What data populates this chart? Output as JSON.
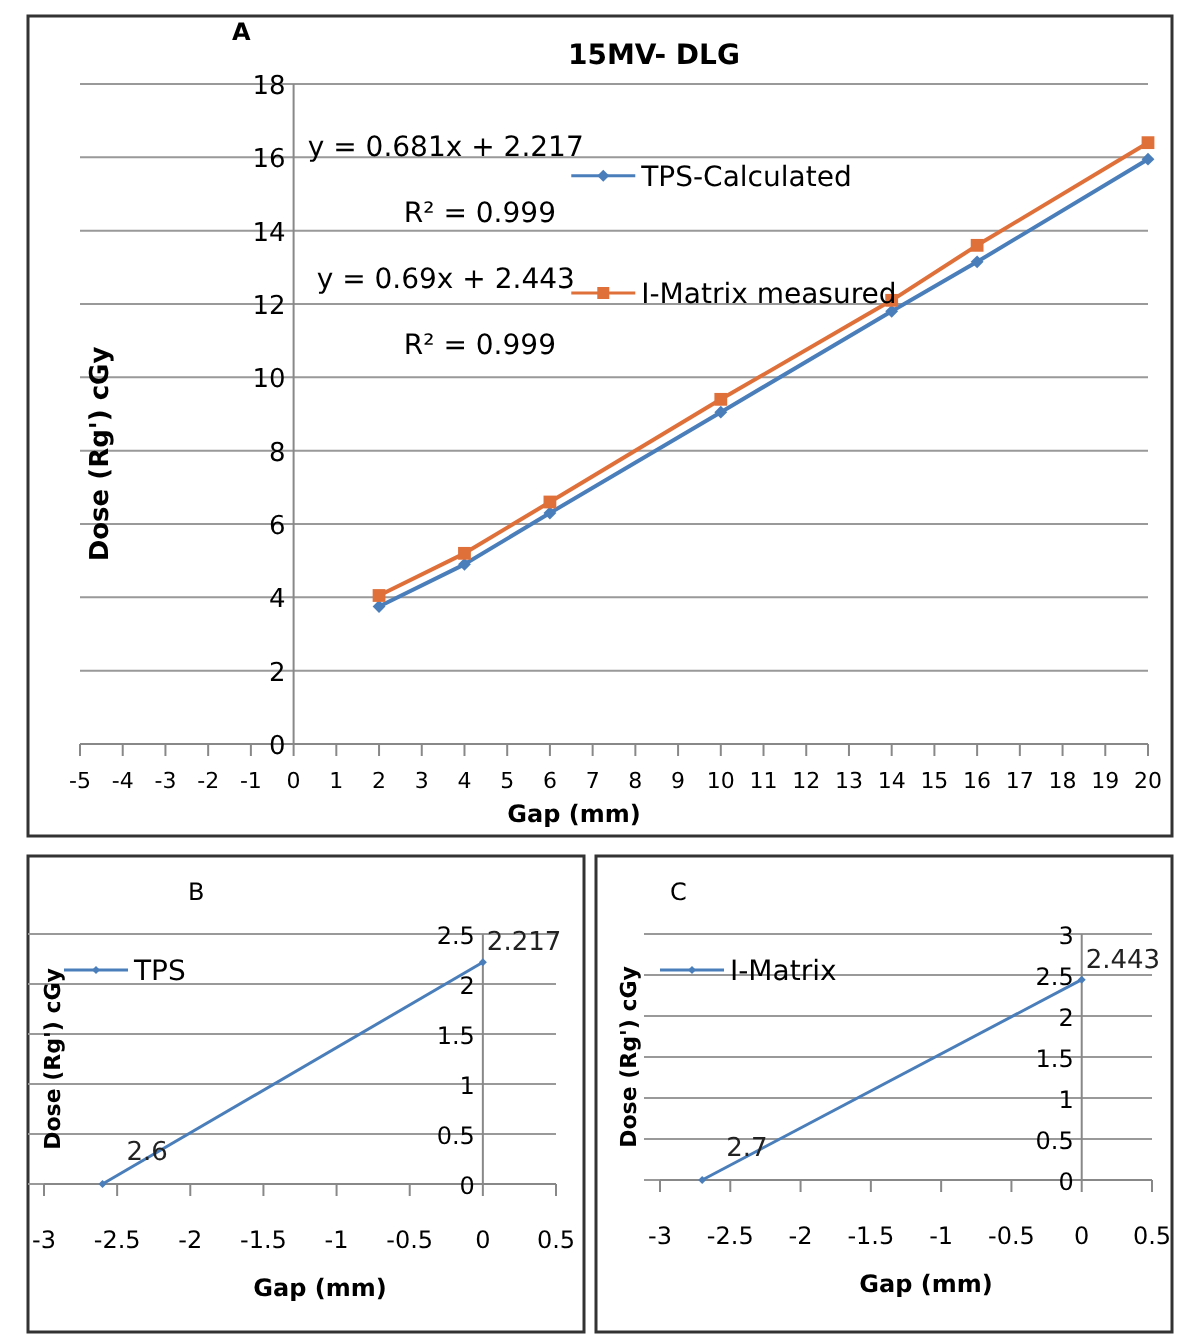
{
  "chart_data": [
    {
      "type": "line",
      "title": "15MV- DLG",
      "xlabel": "Gap (mm)",
      "ylabel": "Dose (Rg') cGy",
      "x": [
        2,
        4,
        6,
        10,
        14,
        16,
        20
      ],
      "series": [
        {
          "name": "TPS-Calculated",
          "color": "#4a7ebb",
          "marker": "diamond",
          "values": [
            3.75,
            4.9,
            6.3,
            9.05,
            11.8,
            13.15,
            15.95
          ]
        },
        {
          "name": "I-Matrix measured",
          "color": "#e0703a",
          "marker": "square",
          "values": [
            4.05,
            5.2,
            6.6,
            9.4,
            12.1,
            13.6,
            16.4
          ]
        }
      ],
      "xlim": [
        -5,
        20
      ],
      "xticks": [
        -5,
        -4,
        -3,
        -2,
        -1,
        0,
        1,
        2,
        3,
        4,
        5,
        6,
        7,
        8,
        9,
        10,
        11,
        12,
        13,
        14,
        15,
        16,
        17,
        18,
        19,
        20
      ],
      "ylim": [
        0,
        18
      ],
      "yticks": [
        0,
        2,
        4,
        6,
        8,
        10,
        12,
        14,
        16,
        18
      ],
      "grid": "y",
      "legend": "right",
      "annotations": [
        "A",
        "y = 0.681x + 2.217",
        "R² = 0.999",
        "y = 0.69x + 2.443",
        "R² = 0.999"
      ]
    },
    {
      "type": "line",
      "xlabel": "Gap (mm)",
      "ylabel": "Dose (Rg') cGy",
      "x": [
        -2.6,
        0
      ],
      "series": [
        {
          "name": "TPS",
          "color": "#4a7ebb",
          "marker": "diamond",
          "values": [
            0,
            2.217
          ],
          "value_labels": [
            null,
            "2.217"
          ]
        }
      ],
      "xlim": [
        -3,
        0.5
      ],
      "xticks": [
        -3,
        -2.5,
        -2,
        -1.5,
        -1,
        -0.5,
        0,
        0.5
      ],
      "ylim": [
        0,
        2.5
      ],
      "yticks": [
        0,
        0.5,
        1,
        1.5,
        2,
        2.5
      ],
      "grid": "y",
      "legend": "top left",
      "annotations": [
        "B",
        {
          "text": "2.6",
          "x": -2.6,
          "y": 0
        }
      ]
    },
    {
      "type": "line",
      "xlabel": "Gap (mm)",
      "ylabel": "Dose (Rg') cGy",
      "x": [
        -2.7,
        0
      ],
      "series": [
        {
          "name": "I-Matrix",
          "color": "#4a7ebb",
          "marker": "diamond",
          "values": [
            0,
            2.443
          ],
          "value_labels": [
            null,
            "2.443"
          ]
        }
      ],
      "xlim": [
        -3,
        0.5
      ],
      "xticks": [
        -3,
        -2.5,
        -2,
        -1.5,
        -1,
        -0.5,
        0,
        0.5
      ],
      "ylim": [
        0,
        3
      ],
      "yticks": [
        0,
        0.5,
        1,
        1.5,
        2,
        2.5,
        3
      ],
      "grid": "y",
      "legend": "top left",
      "annotations": [
        "C",
        {
          "text": "2.7",
          "x": -2.7,
          "y": 0
        }
      ]
    }
  ]
}
